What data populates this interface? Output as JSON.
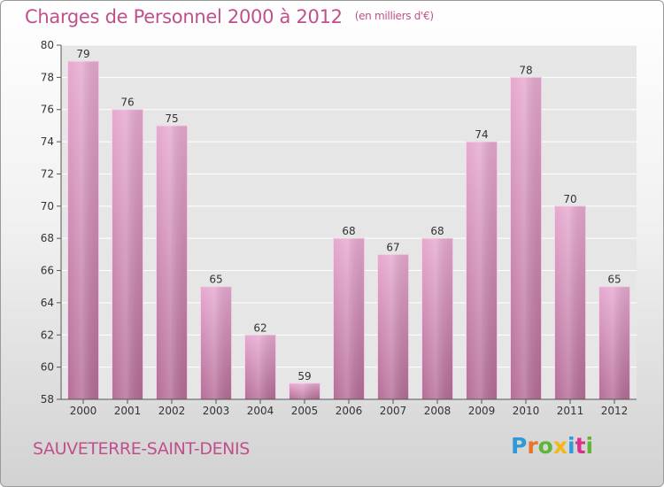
{
  "header": {
    "title": "Charges de Personnel 2000 à 2012",
    "subtitle": "(en milliers d'€)"
  },
  "footer": {
    "town": "SAUVETERRE-SAINT-DENIS",
    "logo": "Proxiti"
  },
  "colors": {
    "accent": "#c0508c",
    "bar_top": "#e6a9cf",
    "bar_bottom": "#b56d97",
    "logo_letters": [
      "#2f9ad8",
      "#e8732a",
      "#5db637",
      "#f2b818",
      "#2f9ad8",
      "#d8338a",
      "#5db637"
    ]
  },
  "chart_data": {
    "type": "bar",
    "categories": [
      "2000",
      "2001",
      "2002",
      "2003",
      "2004",
      "2005",
      "2006",
      "2007",
      "2008",
      "2009",
      "2010",
      "2011",
      "2012"
    ],
    "values": [
      79,
      76,
      75,
      65,
      62,
      59,
      68,
      67,
      68,
      74,
      78,
      70,
      65
    ],
    "ylim": [
      58,
      80
    ],
    "yticks": [
      58,
      60,
      62,
      64,
      66,
      68,
      70,
      72,
      74,
      76,
      78,
      80
    ],
    "grid": true,
    "data_labels": true
  }
}
